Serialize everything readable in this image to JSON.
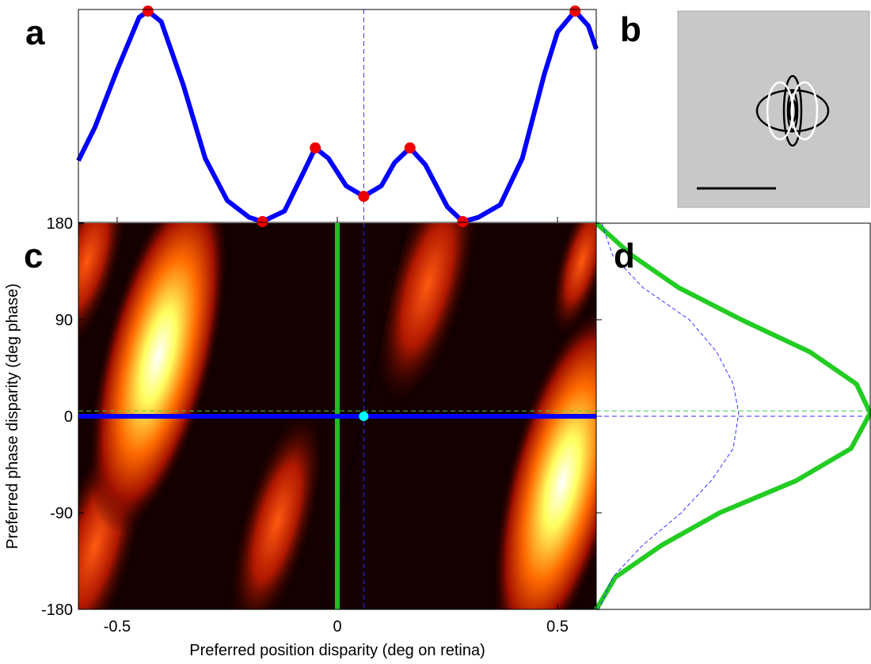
{
  "chart_data": [
    {
      "type": "line",
      "label": "a",
      "xlim": [
        -0.588,
        0.588
      ],
      "ylim": [
        0,
        1
      ],
      "x": [
        -0.588,
        -0.55,
        -0.5,
        -0.45,
        -0.43,
        -0.4,
        -0.35,
        -0.3,
        -0.25,
        -0.2,
        -0.17,
        -0.12,
        -0.08,
        -0.05,
        -0.02,
        0.02,
        0.06,
        0.1,
        0.13,
        0.165,
        0.2,
        0.25,
        0.285,
        0.32,
        0.37,
        0.42,
        0.47,
        0.5,
        0.54,
        0.57,
        0.588
      ],
      "series": [
        {
          "color": "#0000ff",
          "values": [
            0.29,
            0.45,
            0.72,
            0.97,
            1.0,
            0.95,
            0.65,
            0.3,
            0.1,
            0.02,
            0,
            0.05,
            0.22,
            0.35,
            0.3,
            0.17,
            0.12,
            0.17,
            0.28,
            0.35,
            0.27,
            0.07,
            0,
            0.02,
            0.08,
            0.3,
            0.7,
            0.9,
            1.0,
            0.93,
            0.82
          ]
        }
      ],
      "points": {
        "color": "#ee0000",
        "x": [
          -0.43,
          -0.17,
          -0.05,
          0.06,
          0.165,
          0.285,
          0.54
        ],
        "values": [
          1.0,
          0,
          0.35,
          0.12,
          0.35,
          0,
          1.0
        ]
      },
      "vline": {
        "x": 0.06,
        "color": "#3333ff"
      }
    },
    {
      "type": "image",
      "label": "b"
    },
    {
      "type": "heatmap",
      "label": "c",
      "xlabel": "Preferred position disparity (deg on retina)",
      "ylabel": "Preferred phase disparity (deg phase)",
      "xlim": [
        -0.588,
        0.588
      ],
      "ylim": [
        -180,
        180
      ],
      "xticks": [
        -0.5,
        0,
        0.5
      ],
      "yticks": [
        -180,
        -90,
        0,
        90,
        180
      ],
      "vline": {
        "x": 0,
        "color": "#22bb22"
      },
      "hline": {
        "y": 0,
        "color": "#0000ff"
      },
      "dashed_vline": {
        "x": 0.06,
        "color": "#3333ff"
      },
      "dashed_hline": {
        "y": 5,
        "color": "#44cc44"
      },
      "diagonal": {
        "x": [
          -0.041,
          0.158
        ],
        "y": [
          -180,
          180
        ]
      },
      "dot": {
        "x": 0.06,
        "y": 0,
        "color": "#00ffff"
      }
    },
    {
      "type": "profile",
      "label": "d",
      "xlim": [
        0,
        1
      ],
      "ylim": [
        -180,
        180
      ],
      "y": [
        180,
        150,
        120,
        90,
        60,
        30,
        3,
        -30,
        -60,
        -90,
        -120,
        -150,
        -180
      ],
      "series": [
        {
          "color": "#22cc22",
          "values": [
            0.0,
            0.13,
            0.3,
            0.53,
            0.78,
            0.95,
            1.0,
            0.93,
            0.73,
            0.45,
            0.24,
            0.07,
            0.0
          ]
        },
        {
          "color": "#3333ff",
          "dashed": true,
          "values": [
            0.02,
            0.06,
            0.17,
            0.34,
            0.44,
            0.5,
            0.52,
            0.5,
            0.42,
            0.31,
            0.17,
            0.06,
            0.01
          ]
        }
      ],
      "hlines": [
        {
          "y": 5,
          "color": "#44cc44"
        },
        {
          "y": 0,
          "color": "#3333ff"
        }
      ]
    }
  ]
}
